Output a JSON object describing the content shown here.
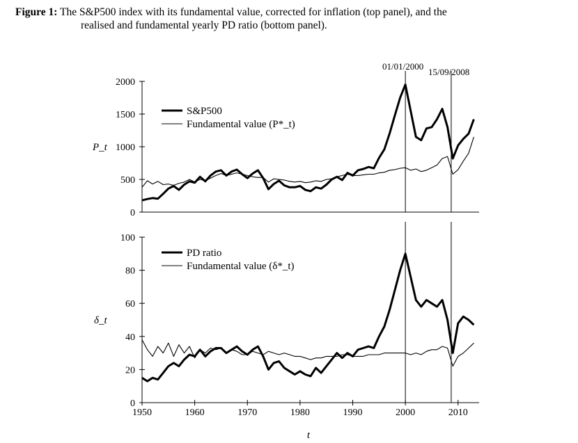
{
  "caption": {
    "label": "Figure 1:",
    "line1": "The S&P500 index with its fundamental value, corrected for inflation (top panel), and the",
    "line2": "realised and fundamental yearly PD ratio (bottom panel)."
  },
  "x_axis_label": "t",
  "annotations": [
    "01/01/2000",
    "15/09/2008"
  ],
  "chart_data": [
    {
      "type": "line",
      "panel": "top",
      "ylabel": "P_t",
      "ylim": [
        0,
        2000
      ],
      "xlim": [
        1950,
        2014
      ],
      "yticks": [
        0,
        500,
        1000,
        1500,
        2000
      ],
      "vlines": [
        2000.0,
        2008.7
      ],
      "series": [
        {
          "name": "S&P500",
          "style": "thick",
          "points": [
            [
              1950,
              180
            ],
            [
              1951,
              200
            ],
            [
              1952,
              215
            ],
            [
              1953,
              205
            ],
            [
              1954,
              280
            ],
            [
              1955,
              360
            ],
            [
              1956,
              400
            ],
            [
              1957,
              340
            ],
            [
              1958,
              420
            ],
            [
              1959,
              470
            ],
            [
              1960,
              450
            ],
            [
              1961,
              540
            ],
            [
              1962,
              470
            ],
            [
              1963,
              560
            ],
            [
              1964,
              620
            ],
            [
              1965,
              640
            ],
            [
              1966,
              560
            ],
            [
              1967,
              620
            ],
            [
              1968,
              650
            ],
            [
              1969,
              580
            ],
            [
              1970,
              520
            ],
            [
              1971,
              590
            ],
            [
              1972,
              640
            ],
            [
              1973,
              520
            ],
            [
              1974,
              350
            ],
            [
              1975,
              430
            ],
            [
              1976,
              480
            ],
            [
              1977,
              410
            ],
            [
              1978,
              380
            ],
            [
              1979,
              380
            ],
            [
              1980,
              400
            ],
            [
              1981,
              340
            ],
            [
              1982,
              320
            ],
            [
              1983,
              380
            ],
            [
              1984,
              360
            ],
            [
              1985,
              420
            ],
            [
              1986,
              500
            ],
            [
              1987,
              540
            ],
            [
              1988,
              490
            ],
            [
              1989,
              600
            ],
            [
              1990,
              560
            ],
            [
              1991,
              640
            ],
            [
              1992,
              660
            ],
            [
              1993,
              690
            ],
            [
              1994,
              670
            ],
            [
              1995,
              830
            ],
            [
              1996,
              960
            ],
            [
              1997,
              1200
            ],
            [
              1998,
              1480
            ],
            [
              1999,
              1750
            ],
            [
              2000,
              1950
            ],
            [
              2001,
              1550
            ],
            [
              2002,
              1150
            ],
            [
              2003,
              1100
            ],
            [
              2004,
              1280
            ],
            [
              2005,
              1300
            ],
            [
              2006,
              1420
            ],
            [
              2007,
              1580
            ],
            [
              2008,
              1300
            ],
            [
              2009,
              820
            ],
            [
              2010,
              1020
            ],
            [
              2011,
              1120
            ],
            [
              2012,
              1200
            ],
            [
              2013,
              1420
            ]
          ]
        },
        {
          "name": "Fundamental value (P*_t)",
          "style": "thin",
          "points": [
            [
              1950,
              380
            ],
            [
              1951,
              480
            ],
            [
              1952,
              430
            ],
            [
              1953,
              470
            ],
            [
              1954,
              420
            ],
            [
              1955,
              430
            ],
            [
              1956,
              410
            ],
            [
              1957,
              440
            ],
            [
              1958,
              460
            ],
            [
              1959,
              500
            ],
            [
              1960,
              460
            ],
            [
              1961,
              500
            ],
            [
              1962,
              480
            ],
            [
              1963,
              520
            ],
            [
              1964,
              560
            ],
            [
              1965,
              590
            ],
            [
              1966,
              560
            ],
            [
              1967,
              580
            ],
            [
              1968,
              600
            ],
            [
              1969,
              580
            ],
            [
              1970,
              560
            ],
            [
              1971,
              540
            ],
            [
              1972,
              530
            ],
            [
              1973,
              530
            ],
            [
              1974,
              460
            ],
            [
              1975,
              510
            ],
            [
              1976,
              500
            ],
            [
              1977,
              490
            ],
            [
              1978,
              470
            ],
            [
              1979,
              460
            ],
            [
              1980,
              470
            ],
            [
              1981,
              450
            ],
            [
              1982,
              460
            ],
            [
              1983,
              480
            ],
            [
              1984,
              470
            ],
            [
              1985,
              500
            ],
            [
              1986,
              510
            ],
            [
              1987,
              540
            ],
            [
              1988,
              560
            ],
            [
              1989,
              580
            ],
            [
              1990,
              560
            ],
            [
              1991,
              560
            ],
            [
              1992,
              570
            ],
            [
              1993,
              580
            ],
            [
              1994,
              580
            ],
            [
              1995,
              600
            ],
            [
              1996,
              610
            ],
            [
              1997,
              640
            ],
            [
              1998,
              650
            ],
            [
              1999,
              670
            ],
            [
              2000,
              680
            ],
            [
              2001,
              640
            ],
            [
              2002,
              660
            ],
            [
              2003,
              620
            ],
            [
              2004,
              640
            ],
            [
              2005,
              680
            ],
            [
              2006,
              720
            ],
            [
              2007,
              820
            ],
            [
              2008,
              850
            ],
            [
              2009,
              580
            ],
            [
              2010,
              650
            ],
            [
              2011,
              780
            ],
            [
              2012,
              900
            ],
            [
              2013,
              1150
            ]
          ]
        }
      ]
    },
    {
      "type": "line",
      "panel": "bottom",
      "ylabel": "δ_t",
      "ylim": [
        0,
        100
      ],
      "xlim": [
        1950,
        2014
      ],
      "yticks": [
        0,
        20,
        40,
        60,
        80,
        100
      ],
      "xticks": [
        1950,
        1960,
        1970,
        1980,
        1990,
        2000,
        2010
      ],
      "vlines": [
        2000.0,
        2008.7
      ],
      "series": [
        {
          "name": "PD ratio",
          "style": "thick",
          "points": [
            [
              1950,
              15
            ],
            [
              1951,
              13
            ],
            [
              1952,
              15
            ],
            [
              1953,
              14
            ],
            [
              1954,
              18
            ],
            [
              1955,
              22
            ],
            [
              1956,
              24
            ],
            [
              1957,
              22
            ],
            [
              1958,
              26
            ],
            [
              1959,
              29
            ],
            [
              1960,
              28
            ],
            [
              1961,
              32
            ],
            [
              1962,
              28
            ],
            [
              1963,
              31
            ],
            [
              1964,
              33
            ],
            [
              1965,
              33
            ],
            [
              1966,
              30
            ],
            [
              1967,
              32
            ],
            [
              1968,
              34
            ],
            [
              1969,
              31
            ],
            [
              1970,
              29
            ],
            [
              1971,
              32
            ],
            [
              1972,
              34
            ],
            [
              1973,
              28
            ],
            [
              1974,
              20
            ],
            [
              1975,
              24
            ],
            [
              1976,
              25
            ],
            [
              1977,
              21
            ],
            [
              1978,
              19
            ],
            [
              1979,
              17
            ],
            [
              1980,
              19
            ],
            [
              1981,
              17
            ],
            [
              1982,
              16
            ],
            [
              1983,
              21
            ],
            [
              1984,
              18
            ],
            [
              1985,
              22
            ],
            [
              1986,
              26
            ],
            [
              1987,
              30
            ],
            [
              1988,
              27
            ],
            [
              1989,
              30
            ],
            [
              1990,
              28
            ],
            [
              1991,
              32
            ],
            [
              1992,
              33
            ],
            [
              1993,
              34
            ],
            [
              1994,
              33
            ],
            [
              1995,
              40
            ],
            [
              1996,
              46
            ],
            [
              1997,
              56
            ],
            [
              1998,
              68
            ],
            [
              1999,
              80
            ],
            [
              2000,
              90
            ],
            [
              2001,
              76
            ],
            [
              2002,
              62
            ],
            [
              2003,
              58
            ],
            [
              2004,
              62
            ],
            [
              2005,
              60
            ],
            [
              2006,
              58
            ],
            [
              2007,
              62
            ],
            [
              2008,
              50
            ],
            [
              2009,
              30
            ],
            [
              2010,
              48
            ],
            [
              2011,
              52
            ],
            [
              2012,
              50
            ],
            [
              2013,
              47
            ]
          ]
        },
        {
          "name": "Fundamental value (δ*_t)",
          "style": "thin",
          "points": [
            [
              1950,
              38
            ],
            [
              1951,
              32
            ],
            [
              1952,
              28
            ],
            [
              1953,
              34
            ],
            [
              1954,
              30
            ],
            [
              1955,
              36
            ],
            [
              1956,
              28
            ],
            [
              1957,
              35
            ],
            [
              1958,
              30
            ],
            [
              1959,
              34
            ],
            [
              1960,
              27
            ],
            [
              1961,
              32
            ],
            [
              1962,
              30
            ],
            [
              1963,
              33
            ],
            [
              1964,
              32
            ],
            [
              1965,
              33
            ],
            [
              1966,
              30
            ],
            [
              1967,
              32
            ],
            [
              1968,
              31
            ],
            [
              1969,
              29
            ],
            [
              1970,
              29
            ],
            [
              1971,
              31
            ],
            [
              1972,
              30
            ],
            [
              1973,
              29
            ],
            [
              1974,
              31
            ],
            [
              1975,
              30
            ],
            [
              1976,
              29
            ],
            [
              1977,
              30
            ],
            [
              1978,
              29
            ],
            [
              1979,
              28
            ],
            [
              1980,
              28
            ],
            [
              1981,
              27
            ],
            [
              1982,
              26
            ],
            [
              1983,
              27
            ],
            [
              1984,
              27
            ],
            [
              1985,
              28
            ],
            [
              1986,
              28
            ],
            [
              1987,
              28
            ],
            [
              1988,
              29
            ],
            [
              1989,
              29
            ],
            [
              1990,
              28
            ],
            [
              1991,
              28
            ],
            [
              1992,
              28
            ],
            [
              1993,
              29
            ],
            [
              1994,
              29
            ],
            [
              1995,
              29
            ],
            [
              1996,
              30
            ],
            [
              1997,
              30
            ],
            [
              1998,
              30
            ],
            [
              1999,
              30
            ],
            [
              2000,
              30
            ],
            [
              2001,
              29
            ],
            [
              2002,
              30
            ],
            [
              2003,
              29
            ],
            [
              2004,
              31
            ],
            [
              2005,
              32
            ],
            [
              2006,
              32
            ],
            [
              2007,
              34
            ],
            [
              2008,
              33
            ],
            [
              2009,
              22
            ],
            [
              2010,
              28
            ],
            [
              2011,
              30
            ],
            [
              2012,
              33
            ],
            [
              2013,
              36
            ]
          ]
        }
      ]
    }
  ]
}
